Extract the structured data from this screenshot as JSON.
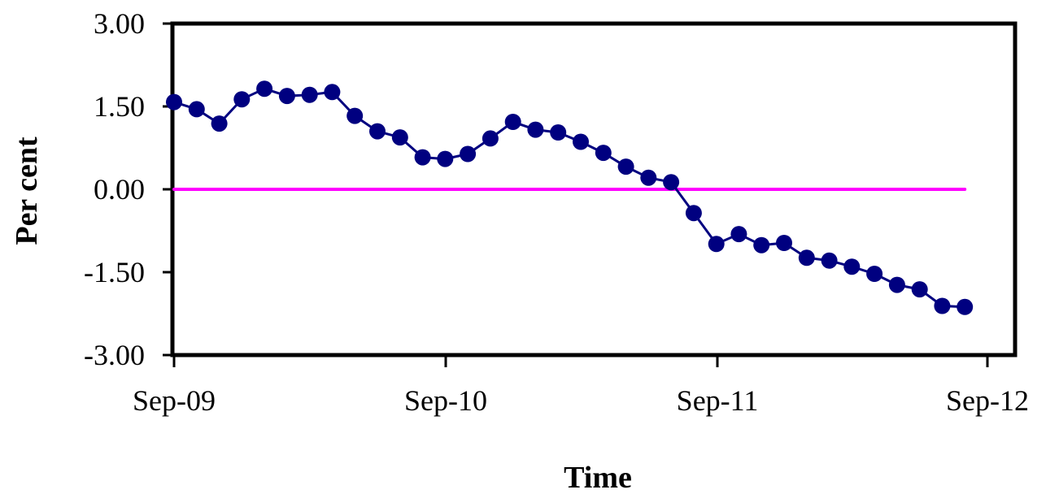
{
  "chart_data": {
    "type": "line",
    "title": "",
    "xlabel": "Time",
    "ylabel": "Per cent",
    "xlim": [
      "2009-09",
      "2012-09"
    ],
    "ylim": [
      -3.0,
      3.0
    ],
    "y_ticks": [
      "3.00",
      "1.50",
      "0.00",
      "-1.50",
      "-3.00"
    ],
    "x_ticks": [
      "Sep-09",
      "Sep-10",
      "Sep-11",
      "Sep-12"
    ],
    "grid": false,
    "legend": "none",
    "series": [
      {
        "color": "#000080",
        "marker": "circle",
        "x": [
          "2009-09",
          "2009-10",
          "2009-11",
          "2009-12",
          "2010-01",
          "2010-02",
          "2010-03",
          "2010-04",
          "2010-05",
          "2010-06",
          "2010-07",
          "2010-08",
          "2010-09",
          "2010-10",
          "2010-11",
          "2010-12",
          "2011-01",
          "2011-02",
          "2011-03",
          "2011-04",
          "2011-05",
          "2011-06",
          "2011-07",
          "2011-08",
          "2011-09",
          "2011-10",
          "2011-11",
          "2011-12",
          "2012-01",
          "2012-02",
          "2012-03",
          "2012-04",
          "2012-05",
          "2012-06",
          "2012-07",
          "2012-08"
        ],
        "y": [
          1.58,
          1.45,
          1.19,
          1.63,
          1.82,
          1.69,
          1.71,
          1.76,
          1.33,
          1.05,
          0.94,
          0.58,
          0.55,
          0.64,
          0.92,
          1.22,
          1.08,
          1.03,
          0.86,
          0.66,
          0.41,
          0.21,
          0.13,
          -0.43,
          -0.99,
          -0.81,
          -1.01,
          -0.97,
          -1.24,
          -1.29,
          -1.4,
          -1.53,
          -1.73,
          -1.81,
          -2.11,
          -2.13
        ]
      },
      {
        "color": "#FF00FF",
        "marker": "none",
        "x": [
          "2009-09",
          "2012-08"
        ],
        "y": [
          0.0,
          0.0
        ]
      }
    ]
  }
}
